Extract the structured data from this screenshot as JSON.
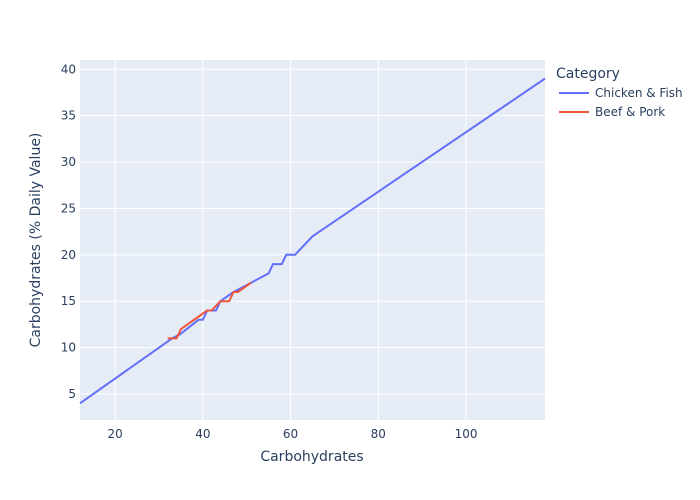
{
  "chart_data": {
    "type": "line",
    "title": "",
    "xlabel": "Carbohydrates",
    "ylabel": "Carbohydrates (% Daily Value)",
    "xlim": [
      12,
      118
    ],
    "ylim": [
      2.2,
      41
    ],
    "x_ticks": [
      20,
      40,
      60,
      80,
      100
    ],
    "y_ticks": [
      5,
      10,
      15,
      20,
      25,
      30,
      35,
      40
    ],
    "grid": true,
    "legend": {
      "title": "Category",
      "placement": "right"
    },
    "series": [
      {
        "name": "Chicken & Fish",
        "color": "#636efa",
        "x": [
          12,
          33,
          35,
          39,
          40,
          41,
          43,
          44,
          47,
          51,
          55,
          56,
          58,
          59,
          61,
          65,
          118
        ],
        "y": [
          4,
          11,
          11.5,
          13,
          13,
          14,
          14,
          15,
          16,
          17,
          18,
          19,
          19,
          20,
          20,
          22,
          39
        ]
      },
      {
        "name": "Beef & Pork",
        "color": "#ef553b",
        "x": [
          32,
          34,
          35,
          41,
          42,
          44,
          46,
          47,
          48,
          51
        ],
        "y": [
          11,
          11,
          12,
          14,
          14,
          15,
          15,
          16,
          16,
          17
        ]
      }
    ]
  }
}
